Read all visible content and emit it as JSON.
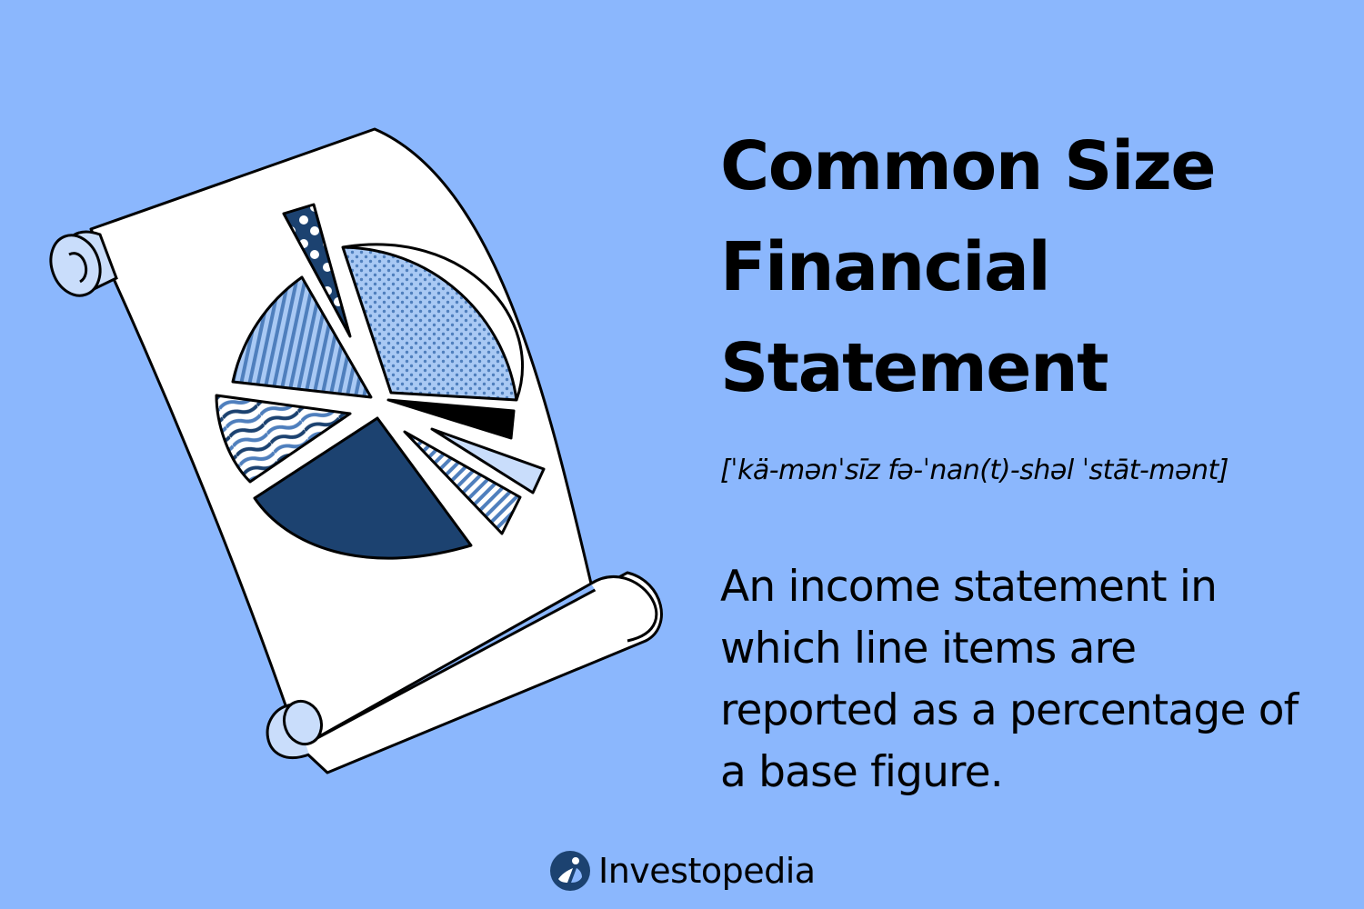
{
  "title": "Common Size\nFinancial\nStatement",
  "pronunciation": "[ˈkä-mənˈsīz fə-ˈnan(t)-shəl ˈstāt-mənt]",
  "definition": "An income statement in which line items are reported as a percentage of a base figure.",
  "brand": {
    "name": "Investopedia"
  },
  "colors": {
    "background": "#8bb7fd",
    "paper": "#ffffff",
    "scroll_roll": "#c9ddfb",
    "navy": "#1c4270",
    "mid_blue": "#4f7fbd",
    "light_blue": "#a9c9f4",
    "outline": "#000000"
  },
  "icons": [
    "scroll-illustration",
    "pie-chart-illustration",
    "investopedia-logo-icon"
  ]
}
